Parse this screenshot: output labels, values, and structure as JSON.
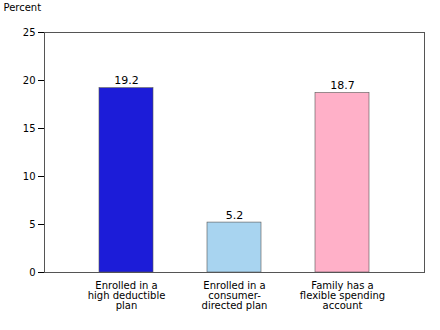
{
  "chart_data": {
    "type": "bar",
    "categories": [
      "Enrolled in a\nhigh deductible\nplan",
      "Enrolled in a\nconsumer-\ndirected plan",
      "Family has a\nflexible spending\naccount"
    ],
    "values": [
      19.2,
      5.2,
      18.7
    ],
    "colors": [
      "#1c1cd8",
      "#a8d4f0",
      "#ffb0c8"
    ],
    "ylabel": "Percent",
    "ylim": [
      0,
      25
    ],
    "yticks": [
      0,
      5,
      10,
      15,
      20,
      25
    ],
    "data_labels": true,
    "grid": false
  }
}
